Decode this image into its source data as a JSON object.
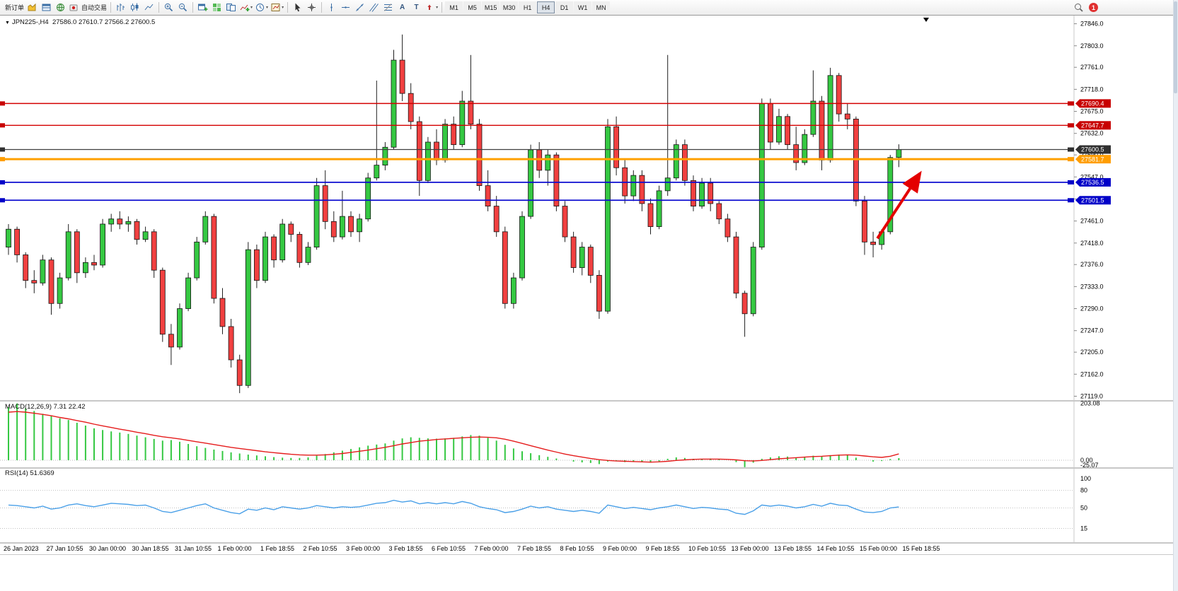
{
  "glyphs": {
    "caret": "▾",
    "menu_triangle": "▼",
    "letter_a": "A",
    "letter_t": "T"
  },
  "toolbar": {
    "new_order": "新订单",
    "autotrading": "自动交易",
    "timeframes": [
      "M1",
      "M5",
      "M15",
      "M30",
      "H1",
      "H4",
      "D1",
      "W1",
      "MN"
    ],
    "active_timeframe": "H4",
    "notification_count": "1"
  },
  "chart_header": {
    "symbol_period": "JPN225-,H4",
    "ohlc": "27586.0 27610.7 27566.2 27600.5"
  },
  "indicators": {
    "macd_label": "MACD(12,26,9)",
    "macd_value_main": "7.31",
    "macd_value_signal": "22.42",
    "rsi_label": "RSI(14)",
    "rsi_value": "51.6369"
  },
  "chart_data": {
    "type": "candlestick",
    "symbol": "JPN225-",
    "period": "H4",
    "y_axis": {
      "top_price": 27862,
      "bottom_price": 27110,
      "ticks": [
        27846,
        27803,
        27761,
        27718,
        27675,
        27632,
        27590,
        27547,
        27504,
        27461,
        27418,
        27376,
        27333,
        27290,
        27247,
        27205,
        27162,
        27119
      ]
    },
    "x_labels": [
      "26 Jan 2023",
      "27 Jan 10:55",
      "30 Jan 00:00",
      "30 Jan 18:55",
      "31 Jan 10:55",
      "1 Feb 00:00",
      "1 Feb 18:55",
      "2 Feb 10:55",
      "3 Feb 00:00",
      "3 Feb 18:55",
      "6 Feb 10:55",
      "7 Feb 00:00",
      "7 Feb 18:55",
      "8 Feb 10:55",
      "9 Feb 00:00",
      "9 Feb 18:55",
      "10 Feb 10:55",
      "13 Feb 00:00",
      "13 Feb 18:55",
      "14 Feb 10:55",
      "15 Feb 00:00",
      "15 Feb 18:55"
    ],
    "candles": [
      [
        27410,
        27455,
        27395,
        27445
      ],
      [
        27445,
        27450,
        27380,
        27395
      ],
      [
        27395,
        27400,
        27330,
        27345
      ],
      [
        27345,
        27365,
        27320,
        27340
      ],
      [
        27340,
        27395,
        27335,
        27385
      ],
      [
        27385,
        27390,
        27278,
        27300
      ],
      [
        27300,
        27360,
        27290,
        27350
      ],
      [
        27350,
        27455,
        27345,
        27440
      ],
      [
        27440,
        27445,
        27340,
        27360
      ],
      [
        27360,
        27390,
        27350,
        27380
      ],
      [
        27380,
        27395,
        27365,
        27375
      ],
      [
        27375,
        27465,
        27370,
        27455
      ],
      [
        27455,
        27475,
        27440,
        27465
      ],
      [
        27465,
        27480,
        27445,
        27455
      ],
      [
        27455,
        27470,
        27440,
        27460
      ],
      [
        27460,
        27465,
        27415,
        27425
      ],
      [
        27425,
        27450,
        27420,
        27440
      ],
      [
        27440,
        27445,
        27350,
        27365
      ],
      [
        27365,
        27370,
        27225,
        27240
      ],
      [
        27240,
        27260,
        27180,
        27215
      ],
      [
        27215,
        27300,
        27210,
        27290
      ],
      [
        27290,
        27360,
        27285,
        27350
      ],
      [
        27350,
        27430,
        27345,
        27420
      ],
      [
        27420,
        27480,
        27415,
        27470
      ],
      [
        27470,
        27475,
        27300,
        27310
      ],
      [
        27310,
        27330,
        27240,
        27255
      ],
      [
        27255,
        27270,
        27175,
        27190
      ],
      [
        27190,
        27200,
        27125,
        27140
      ],
      [
        27140,
        27420,
        27135,
        27405
      ],
      [
        27405,
        27415,
        27330,
        27345
      ],
      [
        27345,
        27440,
        27340,
        27430
      ],
      [
        27430,
        27435,
        27370,
        27385
      ],
      [
        27385,
        27465,
        27380,
        27455
      ],
      [
        27455,
        27460,
        27420,
        27435
      ],
      [
        27435,
        27440,
        27370,
        27380
      ],
      [
        27380,
        27420,
        27375,
        27410
      ],
      [
        27410,
        27545,
        27405,
        27530
      ],
      [
        27530,
        27560,
        27445,
        27460
      ],
      [
        27460,
        27480,
        27420,
        27430
      ],
      [
        27430,
        27520,
        27425,
        27470
      ],
      [
        27470,
        27480,
        27430,
        27440
      ],
      [
        27440,
        27475,
        27420,
        27465
      ],
      [
        27465,
        27555,
        27460,
        27545
      ],
      [
        27545,
        27735,
        27540,
        27570
      ],
      [
        27570,
        27615,
        27560,
        27605
      ],
      [
        27605,
        27795,
        27600,
        27775
      ],
      [
        27775,
        27825,
        27695,
        27710
      ],
      [
        27710,
        27730,
        27640,
        27655
      ],
      [
        27655,
        27665,
        27510,
        27540
      ],
      [
        27540,
        27625,
        27535,
        27615
      ],
      [
        27615,
        27640,
        27570,
        27580
      ],
      [
        27580,
        27660,
        27575,
        27650
      ],
      [
        27650,
        27665,
        27600,
        27610
      ],
      [
        27610,
        27715,
        27605,
        27695
      ],
      [
        27695,
        27785,
        27640,
        27650
      ],
      [
        27650,
        27660,
        27520,
        27530
      ],
      [
        27530,
        27560,
        27480,
        27490
      ],
      [
        27490,
        27510,
        27430,
        27440
      ],
      [
        27440,
        27450,
        27290,
        27300
      ],
      [
        27300,
        27360,
        27290,
        27350
      ],
      [
        27350,
        27480,
        27345,
        27470
      ],
      [
        27470,
        27610,
        27465,
        27600
      ],
      [
        27600,
        27615,
        27545,
        27560
      ],
      [
        27560,
        27600,
        27530,
        27590
      ],
      [
        27590,
        27595,
        27480,
        27490
      ],
      [
        27490,
        27500,
        27420,
        27430
      ],
      [
        27430,
        27440,
        27360,
        27370
      ],
      [
        27370,
        27420,
        27355,
        27410
      ],
      [
        27410,
        27415,
        27340,
        27355
      ],
      [
        27355,
        27365,
        27270,
        27285
      ],
      [
        27285,
        27660,
        27280,
        27645
      ],
      [
        27645,
        27665,
        27550,
        27565
      ],
      [
        27565,
        27580,
        27495,
        27510
      ],
      [
        27510,
        27560,
        27500,
        27550
      ],
      [
        27550,
        27560,
        27480,
        27495
      ],
      [
        27495,
        27505,
        27435,
        27450
      ],
      [
        27450,
        27530,
        27445,
        27520
      ],
      [
        27520,
        27785,
        27510,
        27545
      ],
      [
        27545,
        27620,
        27540,
        27610
      ],
      [
        27610,
        27620,
        27530,
        27540
      ],
      [
        27540,
        27550,
        27480,
        27490
      ],
      [
        27490,
        27545,
        27485,
        27535
      ],
      [
        27535,
        27545,
        27480,
        27495
      ],
      [
        27495,
        27500,
        27455,
        27465
      ],
      [
        27465,
        27475,
        27420,
        27430
      ],
      [
        27430,
        27440,
        27310,
        27320
      ],
      [
        27320,
        27325,
        27235,
        27280
      ],
      [
        27280,
        27420,
        27275,
        27410
      ],
      [
        27410,
        27700,
        27405,
        27690
      ],
      [
        27690,
        27700,
        27600,
        27615
      ],
      [
        27615,
        27680,
        27610,
        27665
      ],
      [
        27665,
        27670,
        27600,
        27610
      ],
      [
        27610,
        27645,
        27560,
        27575
      ],
      [
        27575,
        27640,
        27570,
        27630
      ],
      [
        27630,
        27755,
        27625,
        27695
      ],
      [
        27695,
        27705,
        27560,
        27580
      ],
      [
        27580,
        27760,
        27575,
        27745
      ],
      [
        27745,
        27750,
        27655,
        27670
      ],
      [
        27670,
        27690,
        27640,
        27660
      ],
      [
        27660,
        27665,
        27490,
        27500
      ],
      [
        27500,
        27510,
        27395,
        27420
      ],
      [
        27420,
        27440,
        27390,
        27415
      ],
      [
        27415,
        27445,
        27405,
        27440
      ],
      [
        27440,
        27590,
        27435,
        27585
      ],
      [
        27585,
        27610.7,
        27566.2,
        27600.5
      ]
    ],
    "hlines": [
      {
        "price": 27690.4,
        "color": "#d40000",
        "width": 1.4
      },
      {
        "price": 27647.7,
        "color": "#d40000",
        "width": 1.4
      },
      {
        "price": 27600.5,
        "color": "#404040",
        "width": 1.2
      },
      {
        "price": 27581.7,
        "color": "#ffa000",
        "width": 3
      },
      {
        "price": 27536.5,
        "color": "#0d0dd0",
        "width": 1.8
      },
      {
        "price": 27501.5,
        "color": "#0d0dd0",
        "width": 1.8
      }
    ],
    "price_tags": [
      {
        "label": "27690.4",
        "price": 27690.4,
        "bg": "#c80000"
      },
      {
        "label": "27647.7",
        "price": 27647.7,
        "bg": "#c80000"
      },
      {
        "label": "27600.5",
        "price": 27600.5,
        "bg": "#303030"
      },
      {
        "label": "27581.7",
        "price": 27581.7,
        "bg": "#ff9d00"
      },
      {
        "label": "27536.5",
        "price": 27536.5,
        "bg": "#0000c8"
      },
      {
        "label": "27501.5",
        "price": 27501.5,
        "bg": "#0000c8"
      }
    ],
    "macd": {
      "histogram": [
        190,
        203,
        186,
        176,
        166,
        158,
        150,
        144,
        134,
        124,
        114,
        108,
        103,
        99,
        94,
        88,
        82,
        76,
        70,
        72,
        66,
        58,
        50,
        44,
        38,
        33,
        28,
        24,
        20,
        17,
        14,
        11,
        9,
        8,
        8,
        10,
        16,
        22,
        28,
        34,
        40,
        46,
        52,
        56,
        60,
        70,
        78,
        82,
        80,
        78,
        77,
        78,
        80,
        85,
        90,
        88,
        80,
        70,
        55,
        42,
        32,
        25,
        18,
        12,
        6,
        0,
        -5,
        -8,
        -10,
        -14,
        -5,
        -2,
        -7,
        -5,
        -7,
        -9,
        -4,
        5,
        10,
        8,
        5,
        5,
        6,
        3,
        0,
        -7,
        -25,
        -9,
        5,
        10,
        14,
        13,
        10,
        12,
        16,
        14,
        18,
        20,
        18,
        9,
        0,
        -5,
        -3,
        4,
        7.31
      ],
      "signal": [
        172,
        174,
        172,
        168,
        164,
        159,
        153,
        148,
        142,
        136,
        129,
        123,
        117,
        111,
        106,
        100,
        95,
        89,
        84,
        80,
        76,
        71,
        66,
        61,
        56,
        51,
        46,
        42,
        38,
        34,
        30,
        27,
        24,
        21,
        19,
        18,
        18,
        19,
        21,
        24,
        28,
        32,
        36,
        41,
        46,
        52,
        58,
        63,
        68,
        71,
        74,
        76,
        78,
        80,
        82,
        83,
        82,
        80,
        75,
        68,
        60,
        52,
        44,
        36,
        29,
        22,
        16,
        11,
        6,
        2,
        -1,
        -3,
        -4,
        -5,
        -6,
        -7,
        -6,
        -4,
        -1,
        1,
        3,
        4,
        4,
        4,
        3,
        1,
        -2,
        -3,
        -1,
        2,
        5,
        7,
        9,
        11,
        13,
        14,
        16,
        18,
        19,
        18,
        15,
        12,
        10,
        14,
        22.42
      ],
      "axis_ticks": [
        "203.08",
        "0.00",
        "-25.07"
      ],
      "axis_values": [
        203.08,
        0,
        -25.07
      ]
    },
    "rsi": {
      "values": [
        55,
        54,
        52,
        50,
        53,
        48,
        50,
        55,
        57,
        54,
        52,
        55,
        58,
        57,
        56,
        54,
        55,
        50,
        44,
        42,
        46,
        50,
        54,
        57,
        50,
        46,
        42,
        40,
        48,
        46,
        50,
        47,
        52,
        50,
        48,
        50,
        54,
        52,
        50,
        52,
        51,
        52,
        55,
        58,
        59,
        63,
        60,
        62,
        57,
        59,
        57,
        59,
        57,
        61,
        58,
        52,
        49,
        47,
        42,
        44,
        48,
        53,
        50,
        52,
        48,
        46,
        44,
        46,
        44,
        41,
        55,
        52,
        49,
        51,
        49,
        47,
        50,
        52,
        55,
        52,
        49,
        51,
        50,
        48,
        47,
        41,
        39,
        45,
        55,
        53,
        55,
        53,
        50,
        52,
        56,
        53,
        58,
        55,
        54,
        48,
        43,
        42,
        44,
        50,
        51.64
      ],
      "levels": [
        80,
        50,
        15
      ],
      "axis_ticks": [
        "100",
        "80",
        "50",
        "15"
      ],
      "axis_values": [
        100,
        80,
        50,
        15
      ]
    },
    "annotation_arrow": {
      "from_index": 101.5,
      "from_price": 27427,
      "to_index": 106.4,
      "to_price": 27552
    },
    "colors": {
      "up": "#35c842",
      "down": "#f14040",
      "wick": "#202020",
      "macd_hist": "#35c842",
      "macd_signal": "#e51c1c",
      "rsi": "#4aa0e8",
      "arrow": "#e40000"
    }
  }
}
